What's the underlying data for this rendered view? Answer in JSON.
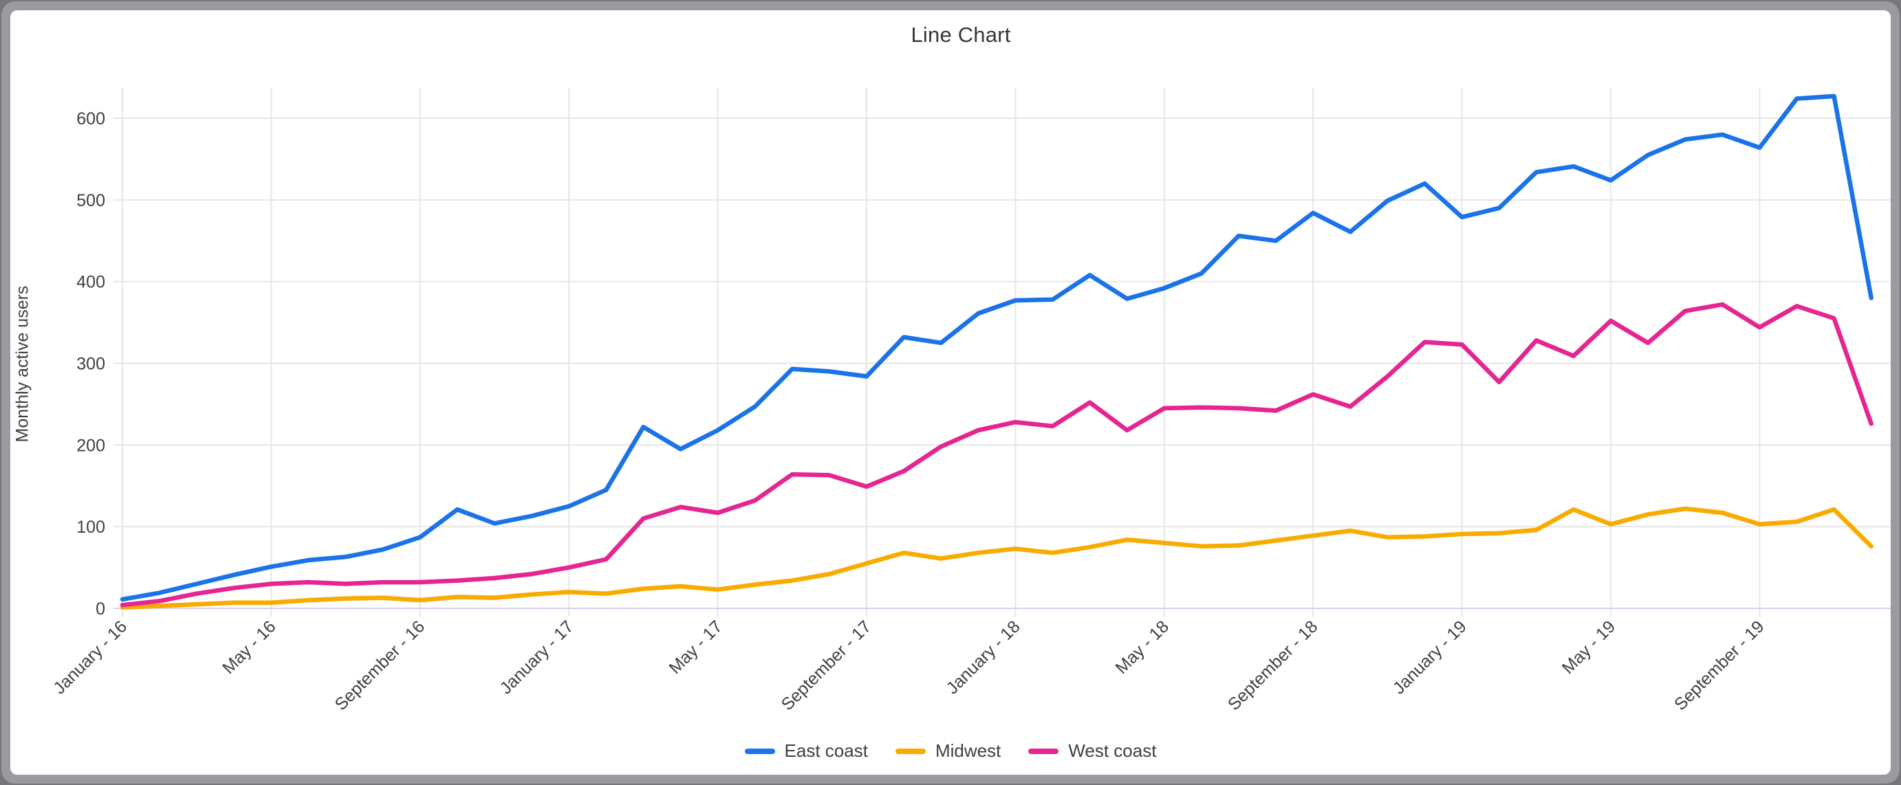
{
  "window": {
    "frame_color": "#9b9b9f",
    "background": "#ffffff"
  },
  "chart": {
    "title": "Line Chart",
    "y_axis_title": "Monthly active users"
  },
  "chart_data": {
    "type": "line",
    "title": "Line Chart",
    "xlabel": "",
    "ylabel": "Monthly active users",
    "ylim": [
      0,
      650
    ],
    "y_ticks": [
      0,
      100,
      200,
      300,
      400,
      500,
      600
    ],
    "n_points": 48,
    "x_range_months": "January 2016 - December 2019",
    "x_tick_indices": [
      0,
      4,
      8,
      12,
      16,
      20,
      24,
      28,
      32,
      36,
      40,
      44
    ],
    "x_tick_labels": [
      "January - 16",
      "May - 16",
      "September - 16",
      "January - 17",
      "May - 17",
      "September - 17",
      "January - 18",
      "May - 18",
      "September - 18",
      "January - 19",
      "May - 19",
      "September - 19"
    ],
    "grid": true,
    "legend_position": "bottom",
    "grid_color": "#e6e6e6",
    "baseline_color": "#ccd6e8",
    "tick_label_color": "#404040",
    "series": [
      {
        "name": "East coast",
        "color": "#1a73e8",
        "values": [
          11,
          19,
          30,
          41,
          51,
          59,
          63,
          72,
          87,
          121,
          104,
          113,
          125,
          145,
          222,
          195,
          218,
          247,
          293,
          290,
          284,
          332,
          325,
          361,
          377,
          378,
          408,
          379,
          392,
          410,
          456,
          450,
          484,
          461,
          499,
          520,
          479,
          490,
          534,
          541,
          524,
          555,
          574,
          580,
          564,
          624,
          627,
          380
        ]
      },
      {
        "name": "Midwest",
        "color": "#f9ab00",
        "values": [
          1,
          3,
          5,
          7,
          7,
          10,
          12,
          13,
          10,
          14,
          13,
          17,
          20,
          18,
          24,
          27,
          23,
          29,
          34,
          42,
          55,
          68,
          61,
          68,
          73,
          68,
          75,
          84,
          80,
          76,
          77,
          83,
          89,
          95,
          87,
          88,
          91,
          92,
          96,
          121,
          103,
          115,
          122,
          117,
          103,
          106,
          121,
          76
        ]
      },
      {
        "name": "West coast",
        "color": "#e52592",
        "values": [
          4,
          9,
          18,
          25,
          30,
          32,
          30,
          32,
          32,
          34,
          37,
          42,
          50,
          60,
          110,
          124,
          117,
          132,
          164,
          163,
          149,
          168,
          198,
          218,
          228,
          223,
          252,
          218,
          245,
          246,
          245,
          242,
          262,
          247,
          284,
          326,
          323,
          277,
          328,
          309,
          352,
          325,
          364,
          372,
          344,
          370,
          355,
          226
        ]
      }
    ]
  }
}
